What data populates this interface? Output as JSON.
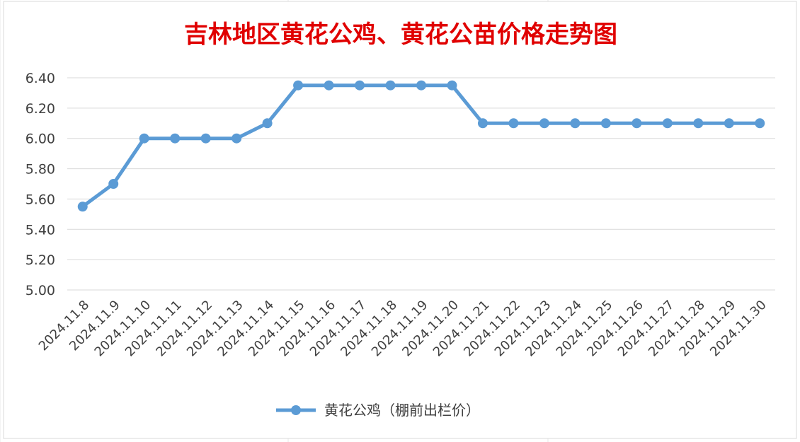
{
  "chart_data": {
    "type": "line",
    "title": "吉林地区黄花公鸡、黄花公苗价格走势图",
    "xlabel": "",
    "ylabel": "",
    "ylim": [
      5.0,
      6.4
    ],
    "y_ticks": [
      "5.00",
      "5.20",
      "5.40",
      "5.60",
      "5.80",
      "6.00",
      "6.20",
      "6.40"
    ],
    "grid": true,
    "legend_position": "bottom",
    "categories": [
      "2024.11.8",
      "2024.11.9",
      "2024.11.10",
      "2024.11.11",
      "2024.11.12",
      "2024.11.13",
      "2024.11.14",
      "2024.11.15",
      "2024.11.16",
      "2024.11.17",
      "2024.11.18",
      "2024.11.19",
      "2024.11.20",
      "2024.11.21",
      "2024.11.22",
      "2024.11.23",
      "2024.11.24",
      "2024.11.25",
      "2024.11.26",
      "2024.11.27",
      "2024.11.28",
      "2024.11.29",
      "2024.11.30"
    ],
    "series": [
      {
        "name": "黄花公鸡（棚前出栏价）",
        "color": "#5b9bd5",
        "values": [
          5.55,
          5.7,
          6.0,
          6.0,
          6.0,
          6.0,
          6.1,
          6.35,
          6.35,
          6.35,
          6.35,
          6.35,
          6.35,
          6.1,
          6.1,
          6.1,
          6.1,
          6.1,
          6.1,
          6.1,
          6.1,
          6.1,
          6.1
        ]
      }
    ],
    "colors": {
      "title": "#e00000",
      "gridline": "#d9d9d9",
      "tick_text": "#595959",
      "border": "#d9d9d9"
    }
  }
}
